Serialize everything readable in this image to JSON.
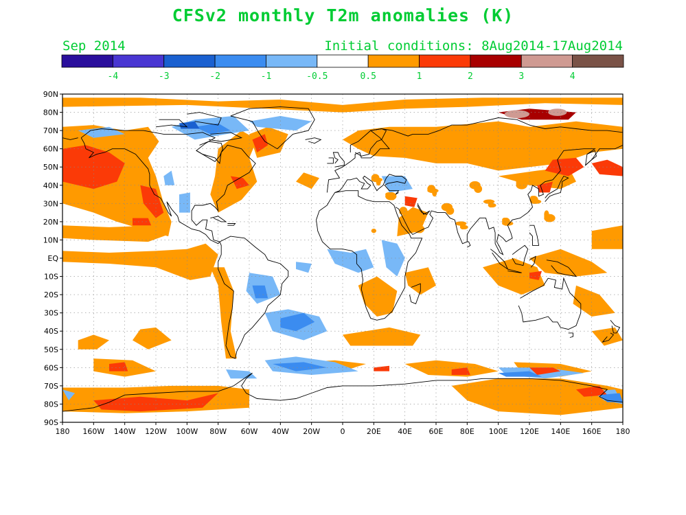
{
  "title": "CFSv2 monthly T2m anomalies (K)",
  "subtitle_left": "Sep 2014",
  "subtitle_right": "Initial conditions: 8Aug2014-17Aug2014",
  "colorbar": {
    "bins": [
      {
        "color": "#2a0f9c"
      },
      {
        "color": "#4936d2"
      },
      {
        "color": "#1a60d0"
      },
      {
        "color": "#3b8cf0"
      },
      {
        "color": "#78b8f7"
      },
      {
        "color": "#ffffff"
      },
      {
        "color": "#ff9a00"
      },
      {
        "color": "#fb3a07"
      },
      {
        "color": "#a80000"
      },
      {
        "color": "#cf9a92"
      },
      {
        "color": "#7a5247"
      }
    ],
    "labels": [
      "-4",
      "-3",
      "-2",
      "-1",
      "-0.5",
      "0.5",
      "1",
      "2",
      "3",
      "4"
    ]
  },
  "map": {
    "lat_labels": [
      "90N",
      "80N",
      "70N",
      "60N",
      "50N",
      "40N",
      "30N",
      "20N",
      "10N",
      "EQ",
      "10S",
      "20S",
      "30S",
      "40S",
      "50S",
      "60S",
      "70S",
      "80S",
      "90S"
    ],
    "lon_labels": [
      "180",
      "160W",
      "140W",
      "120W",
      "100W",
      "80W",
      "60W",
      "40W",
      "20W",
      "0",
      "20E",
      "40E",
      "60E",
      "80E",
      "100E",
      "120E",
      "140E",
      "160E",
      "180"
    ],
    "colors": {
      "warm1": "#ff9a00",
      "warm2": "#fb3a07",
      "warm3": "#a80000",
      "warm4": "#cf9a92",
      "cool1": "#78b8f7",
      "cool2": "#3b8cf0",
      "cool3": "#1a60d0",
      "coast": "#000000",
      "grid": "#888888",
      "label": "#00cc33"
    }
  }
}
